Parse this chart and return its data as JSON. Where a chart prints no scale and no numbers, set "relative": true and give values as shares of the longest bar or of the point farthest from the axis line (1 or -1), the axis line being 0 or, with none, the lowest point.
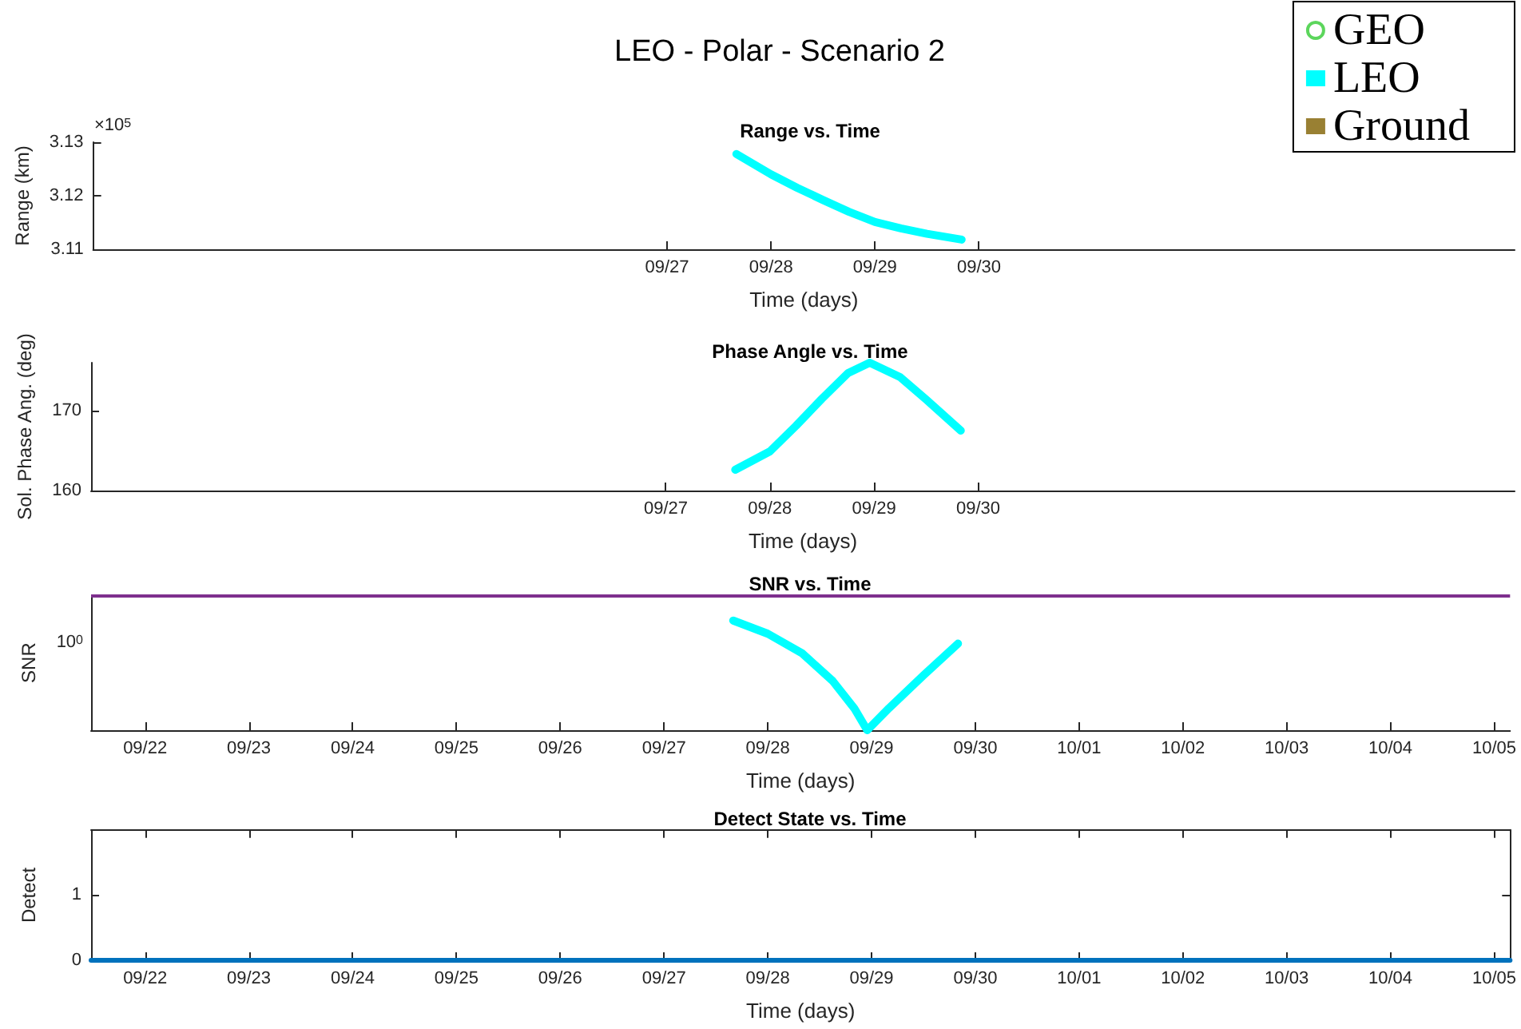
{
  "chart_data": [
    {
      "type": "line",
      "title": "LEO - Polar - Scenario 2",
      "subtitle": "Range vs. Time",
      "xlabel": "Time (days)",
      "ylabel": "Range (km)",
      "annotations": [
        "×10$^{5}$"
      ],
      "xlim": [
        "--09-21T11:30",
        "--10-05T03:40"
      ],
      "xticks": [
        {
          "value": "--09-27",
          "label": "09/27"
        },
        {
          "value": "--09-28",
          "label": "09/28"
        },
        {
          "value": "--09-29",
          "label": "09/29"
        },
        {
          "value": "--09-30",
          "label": "09/30"
        }
      ],
      "ylim": [
        3.11,
        3.13
      ],
      "yticks": [
        3.11,
        3.12,
        3.13
      ],
      "legend": "top right",
      "series": [
        {
          "name": "GEO",
          "type": "scatter",
          "marker": "circle",
          "color": "#33cc33"
        },
        {
          "name": "LEO",
          "color": "#00ffff",
          "x": [
            "--09-27T16:00",
            "--09-28T00:00",
            "--09-28T06:00",
            "--09-28T12:00",
            "--09-28T18:00",
            "--09-29T00:00",
            "--09-29T06:00",
            "--09-29T12:00",
            "--09-29T20:00"
          ],
          "values": [
            3.1278,
            3.124,
            3.1215,
            3.1192,
            3.117,
            3.1151,
            3.1139,
            3.1129,
            3.1118
          ]
        },
        {
          "name": "Ground",
          "color": "#998033"
        }
      ]
    },
    {
      "type": "line",
      "title": "Phase Angle vs. Time",
      "xlabel": "Time (days)",
      "ylabel": "Sol. Phase Ang. (deg)",
      "xlim": [
        "--09-21T11:30",
        "--10-05T03:40"
      ],
      "xticks": [
        {
          "value": "--09-27",
          "label": "09/27"
        },
        {
          "value": "--09-28",
          "label": "09/28"
        },
        {
          "value": "--09-29",
          "label": "09/29"
        },
        {
          "value": "--09-30",
          "label": "09/30"
        }
      ],
      "ylim": [
        160,
        176
      ],
      "yticks": [
        160,
        170
      ],
      "series": [
        {
          "color": "#00ffff",
          "x": [
            "--09-27T16:00",
            "--09-28T00:00",
            "--09-28T06:00",
            "--09-28T12:00",
            "--09-28T18:00",
            "--09-28T23:00",
            "--09-29T06:00",
            "--09-29T12:00",
            "--09-29T20:00"
          ],
          "values": [
            162.6,
            164.9,
            168.1,
            171.5,
            174.7,
            176,
            174.2,
            171.4,
            167.5
          ]
        }
      ]
    },
    {
      "type": "line",
      "title": "SNR vs. Time",
      "xlabel": "Time (days)",
      "ylabel": "SNR",
      "relative": true,
      "annotations": [
        "10$^{0}$"
      ],
      "xlim": [
        "--09-21T11:30",
        "--10-05T03:40"
      ],
      "xticks": [
        {
          "value": "--09-22",
          "label": "09/22"
        },
        {
          "value": "--09-23",
          "label": "09/23"
        },
        {
          "value": "--09-24",
          "label": "09/24"
        },
        {
          "value": "--09-25",
          "label": "09/25"
        },
        {
          "value": "--09-26",
          "label": "09/26"
        },
        {
          "value": "--09-27",
          "label": "09/27"
        },
        {
          "value": "--09-28",
          "label": "09/28"
        },
        {
          "value": "--09-29",
          "label": "09/29"
        },
        {
          "value": "--09-30",
          "label": "09/30"
        },
        {
          "value": "--10-01",
          "label": "10/01"
        },
        {
          "value": "--10-02",
          "label": "10/02"
        },
        {
          "value": "--10-03",
          "label": "10/03"
        },
        {
          "value": "--10-04",
          "label": "10/04"
        },
        {
          "value": "--10-05",
          "label": "10/05"
        }
      ],
      "ref_lines": [
        {
          "axis": "y",
          "value": 1.23,
          "color": "#7e2f8e"
        }
      ],
      "series": [
        {
          "color": "#00ffff",
          "x": [
            "--09-27T16:00",
            "--09-28T00:00",
            "--09-28T08:00",
            "--09-28T15:00",
            "--09-28T20:00",
            "--09-28T23:00",
            "--09-29T04:00",
            "--09-29T12:00",
            "--09-29T20:00"
          ],
          "values": [
            1,
            0.88,
            0.7,
            0.45,
            0.2,
            0,
            0.2,
            0.5,
            0.79
          ]
        }
      ]
    },
    {
      "type": "line",
      "title": "Detect State vs. Time",
      "xlabel": "Time (days)",
      "ylabel": "Detect",
      "xlim": [
        "--09-21T11:30",
        "--10-05T03:40"
      ],
      "xticks": [
        {
          "value": "--09-22",
          "label": "09/22"
        },
        {
          "value": "--09-23",
          "label": "09/23"
        },
        {
          "value": "--09-24",
          "label": "09/24"
        },
        {
          "value": "--09-25",
          "label": "09/25"
        },
        {
          "value": "--09-26",
          "label": "09/26"
        },
        {
          "value": "--09-27",
          "label": "09/27"
        },
        {
          "value": "--09-28",
          "label": "09/28"
        },
        {
          "value": "--09-29",
          "label": "09/29"
        },
        {
          "value": "--09-30",
          "label": "09/30"
        },
        {
          "value": "--10-01",
          "label": "10/01"
        },
        {
          "value": "--10-02",
          "label": "10/02"
        },
        {
          "value": "--10-03",
          "label": "10/03"
        },
        {
          "value": "--10-04",
          "label": "10/04"
        },
        {
          "value": "--10-05",
          "label": "10/05"
        }
      ],
      "ylim": [
        0,
        2
      ],
      "yticks": [
        0,
        1
      ],
      "series": [
        {
          "color": "#0072bd",
          "x": [
            "--09-21T11:30",
            "--10-05T03:40"
          ],
          "values": [
            0,
            0
          ]
        }
      ]
    }
  ]
}
